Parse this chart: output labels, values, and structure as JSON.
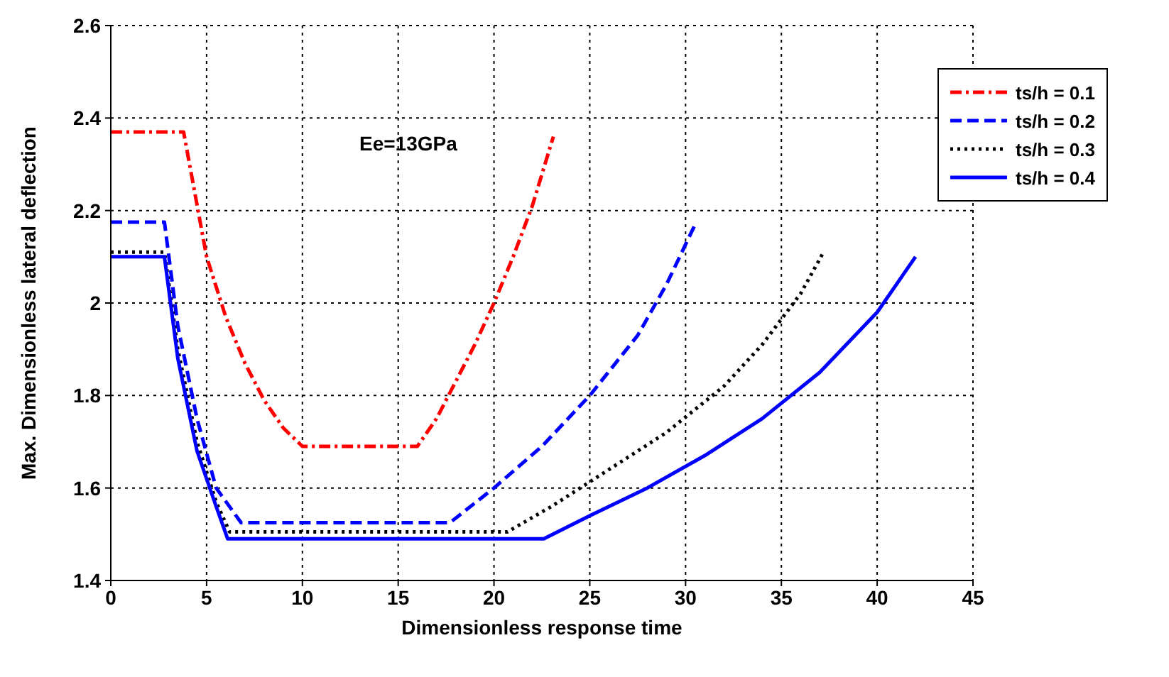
{
  "chart_data": {
    "type": "line",
    "xlabel": "Dimensionless response time",
    "ylabel": "Max. Dimensionless lateral deflection",
    "annotations": [
      "Ee=13GPa"
    ],
    "xlim": [
      0,
      45
    ],
    "xticks": [
      0,
      5,
      10,
      15,
      20,
      25,
      30,
      35,
      40,
      45
    ],
    "ylim": [
      1.4,
      2.6
    ],
    "yticks": [
      1.4,
      1.6,
      1.8,
      2,
      2.2,
      2.4,
      2.6
    ],
    "grid": true,
    "legend": "top right",
    "marker": "none",
    "series": [
      {
        "name": "ts/h = 0.1",
        "color": "#ff0000",
        "line_style": "dashdot",
        "x": [
          0,
          3.8,
          5,
          6,
          7,
          8,
          9,
          10,
          16,
          17,
          18,
          19,
          20,
          21,
          22,
          23.1
        ],
        "values": [
          2.37,
          2.37,
          2.1,
          1.97,
          1.87,
          1.79,
          1.73,
          1.69,
          1.69,
          1.75,
          1.83,
          1.91,
          2.0,
          2.1,
          2.21,
          2.36
        ]
      },
      {
        "name": "ts/h = 0.2",
        "color": "#0000ff",
        "line_style": "dashed",
        "x": [
          0,
          2.8,
          3.5,
          4.5,
          5.5,
          6.8,
          17.7,
          20,
          22.5,
          25,
          27.5,
          29,
          30.5
        ],
        "values": [
          2.175,
          2.175,
          1.95,
          1.75,
          1.6,
          1.525,
          1.525,
          1.6,
          1.69,
          1.8,
          1.93,
          2.04,
          2.17
        ]
      },
      {
        "name": "ts/h = 0.3",
        "color": "#000000",
        "line_style": "dotted",
        "x": [
          0,
          2.8,
          3.5,
          4.5,
          5.5,
          6.2,
          20.7,
          23,
          26,
          29,
          32,
          34,
          36,
          37.2
        ],
        "values": [
          2.11,
          2.11,
          1.9,
          1.7,
          1.57,
          1.505,
          1.505,
          1.56,
          1.64,
          1.72,
          1.82,
          1.91,
          2.02,
          2.11
        ]
      },
      {
        "name": "ts/h = 0.4",
        "color": "#0000ff",
        "line_style": "solid",
        "x": [
          0,
          2.8,
          3.5,
          4.5,
          5.5,
          6.1,
          22.6,
          25,
          28,
          31,
          34,
          37,
          40,
          42
        ],
        "values": [
          2.1,
          2.1,
          1.88,
          1.68,
          1.56,
          1.49,
          1.49,
          1.54,
          1.6,
          1.67,
          1.75,
          1.85,
          1.98,
          2.1
        ]
      }
    ]
  }
}
